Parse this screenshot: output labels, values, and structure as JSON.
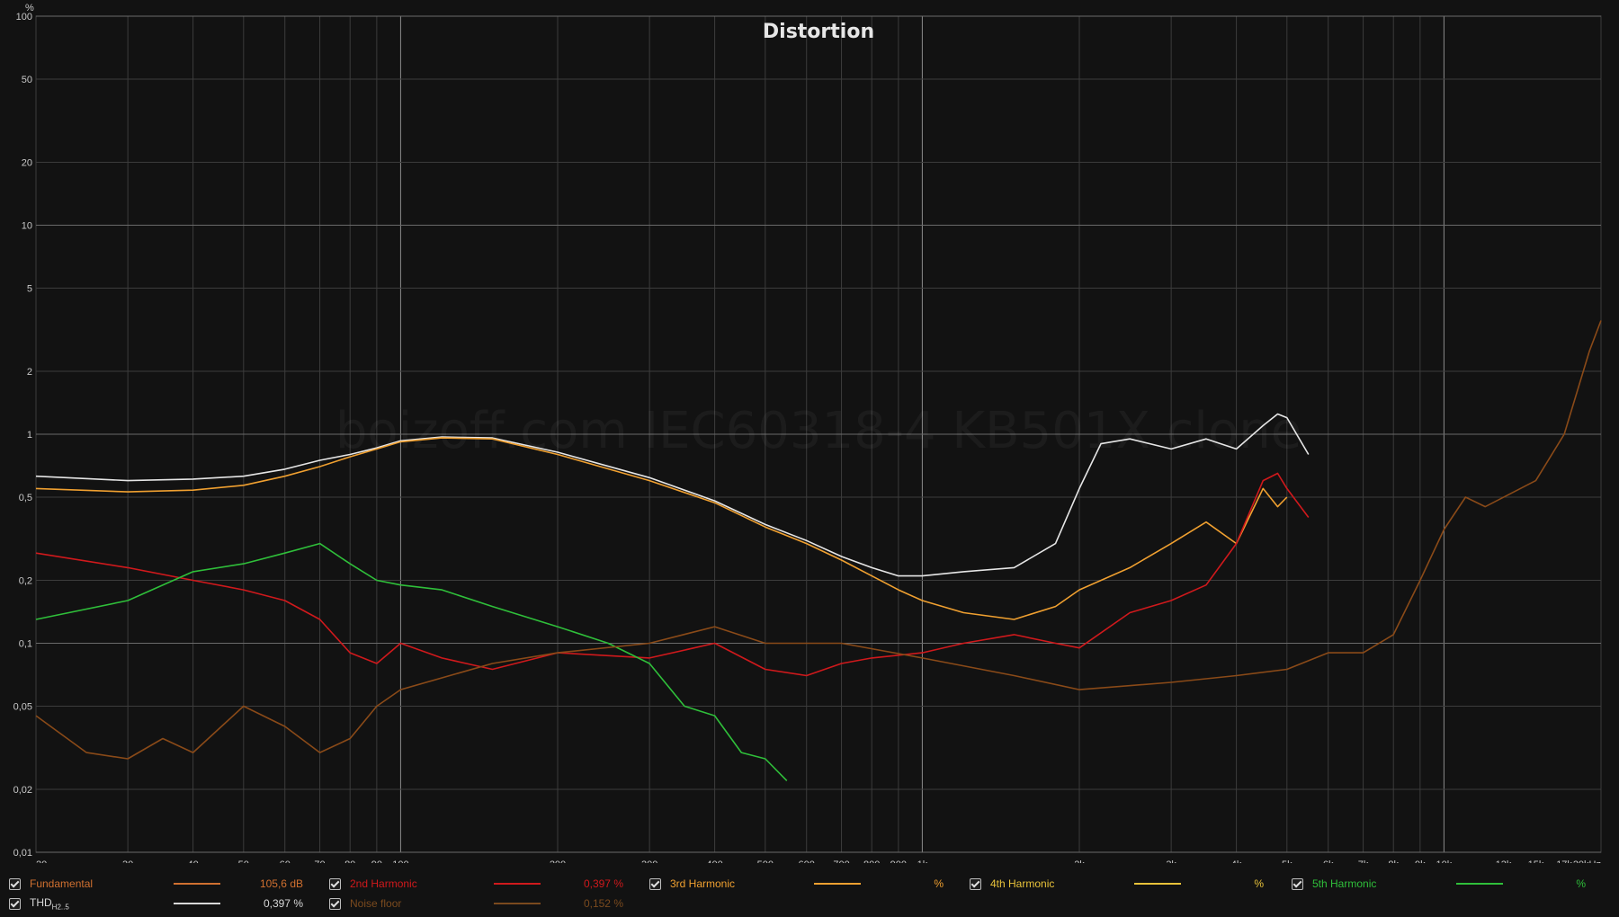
{
  "chart_data": {
    "type": "line",
    "title": "Distortion",
    "watermark": "boizoff.com IEC60318-4 KB501X clone",
    "y_unit_label": "%",
    "x_scale": "log",
    "y_scale": "log",
    "xlim": [
      20,
      20000
    ],
    "ylim": [
      0.01,
      100
    ],
    "x_ticks": [
      "20",
      "30",
      "40",
      "50",
      "60",
      "70",
      "80",
      "90",
      "100",
      "200",
      "300",
      "400",
      "500",
      "600",
      "700",
      "800",
      "900",
      "1k",
      "2k",
      "3k",
      "4k",
      "5k",
      "6k",
      "7k",
      "8k",
      "9k",
      "10k",
      "13k",
      "15k",
      "17k",
      "20kHz"
    ],
    "x_tick_values": [
      20,
      30,
      40,
      50,
      60,
      70,
      80,
      90,
      100,
      200,
      300,
      400,
      500,
      600,
      700,
      800,
      900,
      1000,
      2000,
      3000,
      4000,
      5000,
      6000,
      7000,
      8000,
      9000,
      10000,
      13000,
      15000,
      17000,
      20000
    ],
    "y_ticks": [
      "100",
      "50",
      "20",
      "10",
      "5",
      "2",
      "1",
      "0,5",
      "0,2",
      "0,1",
      "0,05",
      "0,02",
      "0,01"
    ],
    "y_tick_values": [
      100,
      50,
      20,
      10,
      5,
      2,
      1,
      0.5,
      0.2,
      0.1,
      0.05,
      0.02,
      0.01
    ],
    "grid": true,
    "legend_position": "bottom",
    "series": [
      {
        "name": "THD",
        "color": "#e6e6e6",
        "x": [
          20,
          30,
          40,
          50,
          60,
          70,
          80,
          90,
          100,
          120,
          150,
          200,
          300,
          400,
          500,
          600,
          700,
          800,
          900,
          1000,
          1200,
          1500,
          1800,
          2000,
          2200,
          2500,
          3000,
          3500,
          4000,
          4500,
          4800,
          5000,
          5500
        ],
        "y": [
          0.63,
          0.6,
          0.61,
          0.63,
          0.68,
          0.75,
          0.8,
          0.86,
          0.93,
          0.97,
          0.96,
          0.82,
          0.62,
          0.48,
          0.37,
          0.31,
          0.26,
          0.23,
          0.21,
          0.21,
          0.22,
          0.23,
          0.3,
          0.55,
          0.9,
          0.95,
          0.85,
          0.95,
          0.85,
          1.1,
          1.25,
          1.2,
          0.8
        ]
      },
      {
        "name": "3rd Harmonic",
        "color": "#f0a030",
        "x": [
          20,
          30,
          40,
          50,
          60,
          70,
          80,
          90,
          100,
          120,
          150,
          200,
          300,
          400,
          500,
          600,
          700,
          800,
          900,
          1000,
          1200,
          1500,
          1800,
          2000,
          2500,
          3000,
          3500,
          4000,
          4500,
          4800,
          5000
        ],
        "y": [
          0.55,
          0.53,
          0.54,
          0.57,
          0.63,
          0.7,
          0.78,
          0.85,
          0.92,
          0.96,
          0.95,
          0.8,
          0.6,
          0.47,
          0.36,
          0.3,
          0.25,
          0.21,
          0.18,
          0.16,
          0.14,
          0.13,
          0.15,
          0.18,
          0.23,
          0.3,
          0.38,
          0.3,
          0.55,
          0.45,
          0.5
        ]
      },
      {
        "name": "2nd Harmonic",
        "color": "#d0191c",
        "x": [
          20,
          30,
          40,
          50,
          60,
          70,
          80,
          90,
          100,
          120,
          150,
          200,
          300,
          400,
          500,
          600,
          700,
          800,
          1000,
          1200,
          1500,
          1800,
          2000,
          2500,
          3000,
          3500,
          4000,
          4500,
          4800,
          5000,
          5500
        ],
        "y": [
          0.27,
          0.23,
          0.2,
          0.18,
          0.16,
          0.13,
          0.09,
          0.08,
          0.1,
          0.085,
          0.075,
          0.09,
          0.085,
          0.1,
          0.075,
          0.07,
          0.08,
          0.085,
          0.09,
          0.1,
          0.11,
          0.1,
          0.095,
          0.14,
          0.16,
          0.19,
          0.3,
          0.6,
          0.65,
          0.55,
          0.4
        ]
      },
      {
        "name": "5th Harmonic",
        "color": "#2fbf3a",
        "x": [
          20,
          30,
          40,
          50,
          60,
          70,
          80,
          90,
          100,
          120,
          150,
          200,
          250,
          300,
          350,
          400,
          450,
          500,
          550
        ],
        "y": [
          0.13,
          0.16,
          0.22,
          0.24,
          0.27,
          0.3,
          0.24,
          0.2,
          0.19,
          0.18,
          0.15,
          0.12,
          0.1,
          0.08,
          0.05,
          0.045,
          0.03,
          0.028,
          0.022
        ]
      },
      {
        "name": "Noise floor",
        "color": "#8a4a18",
        "x": [
          20,
          25,
          30,
          35,
          40,
          50,
          60,
          70,
          80,
          90,
          100,
          150,
          200,
          300,
          400,
          500,
          700,
          1000,
          1500,
          2000,
          3000,
          4000,
          5000,
          6000,
          7000,
          8000,
          9000,
          10000,
          11000,
          12000,
          15000,
          17000,
          19000,
          20000
        ],
        "y": [
          0.045,
          0.03,
          0.028,
          0.035,
          0.03,
          0.05,
          0.04,
          0.03,
          0.035,
          0.05,
          0.06,
          0.08,
          0.09,
          0.1,
          0.12,
          0.1,
          0.1,
          0.085,
          0.07,
          0.06,
          0.065,
          0.07,
          0.075,
          0.09,
          0.09,
          0.11,
          0.2,
          0.35,
          0.5,
          0.45,
          0.6,
          1.0,
          2.5,
          3.5
        ]
      },
      {
        "name": "4th Harmonic",
        "color": "#e8c23a",
        "x": [],
        "y": []
      }
    ]
  },
  "legend": {
    "items": [
      {
        "name": "Fundamental",
        "value": "105,6 dB",
        "color": "#d07030"
      },
      {
        "name": "2nd Harmonic",
        "value": "0,397 %",
        "color": "#d0191c"
      },
      {
        "name": "3rd Harmonic",
        "value": "%",
        "color": "#f0a030"
      },
      {
        "name": "4th Harmonic",
        "value": "%",
        "color": "#e8c23a"
      },
      {
        "name": "5th Harmonic",
        "value": "%",
        "color": "#2fbf3a"
      },
      {
        "name": "THD",
        "sub": "H2..5",
        "value": "0,397 %",
        "color": "#d8d8d8"
      },
      {
        "name": "Noise floor",
        "value": "0,152 %",
        "color": "#7a4a1e"
      }
    ]
  }
}
